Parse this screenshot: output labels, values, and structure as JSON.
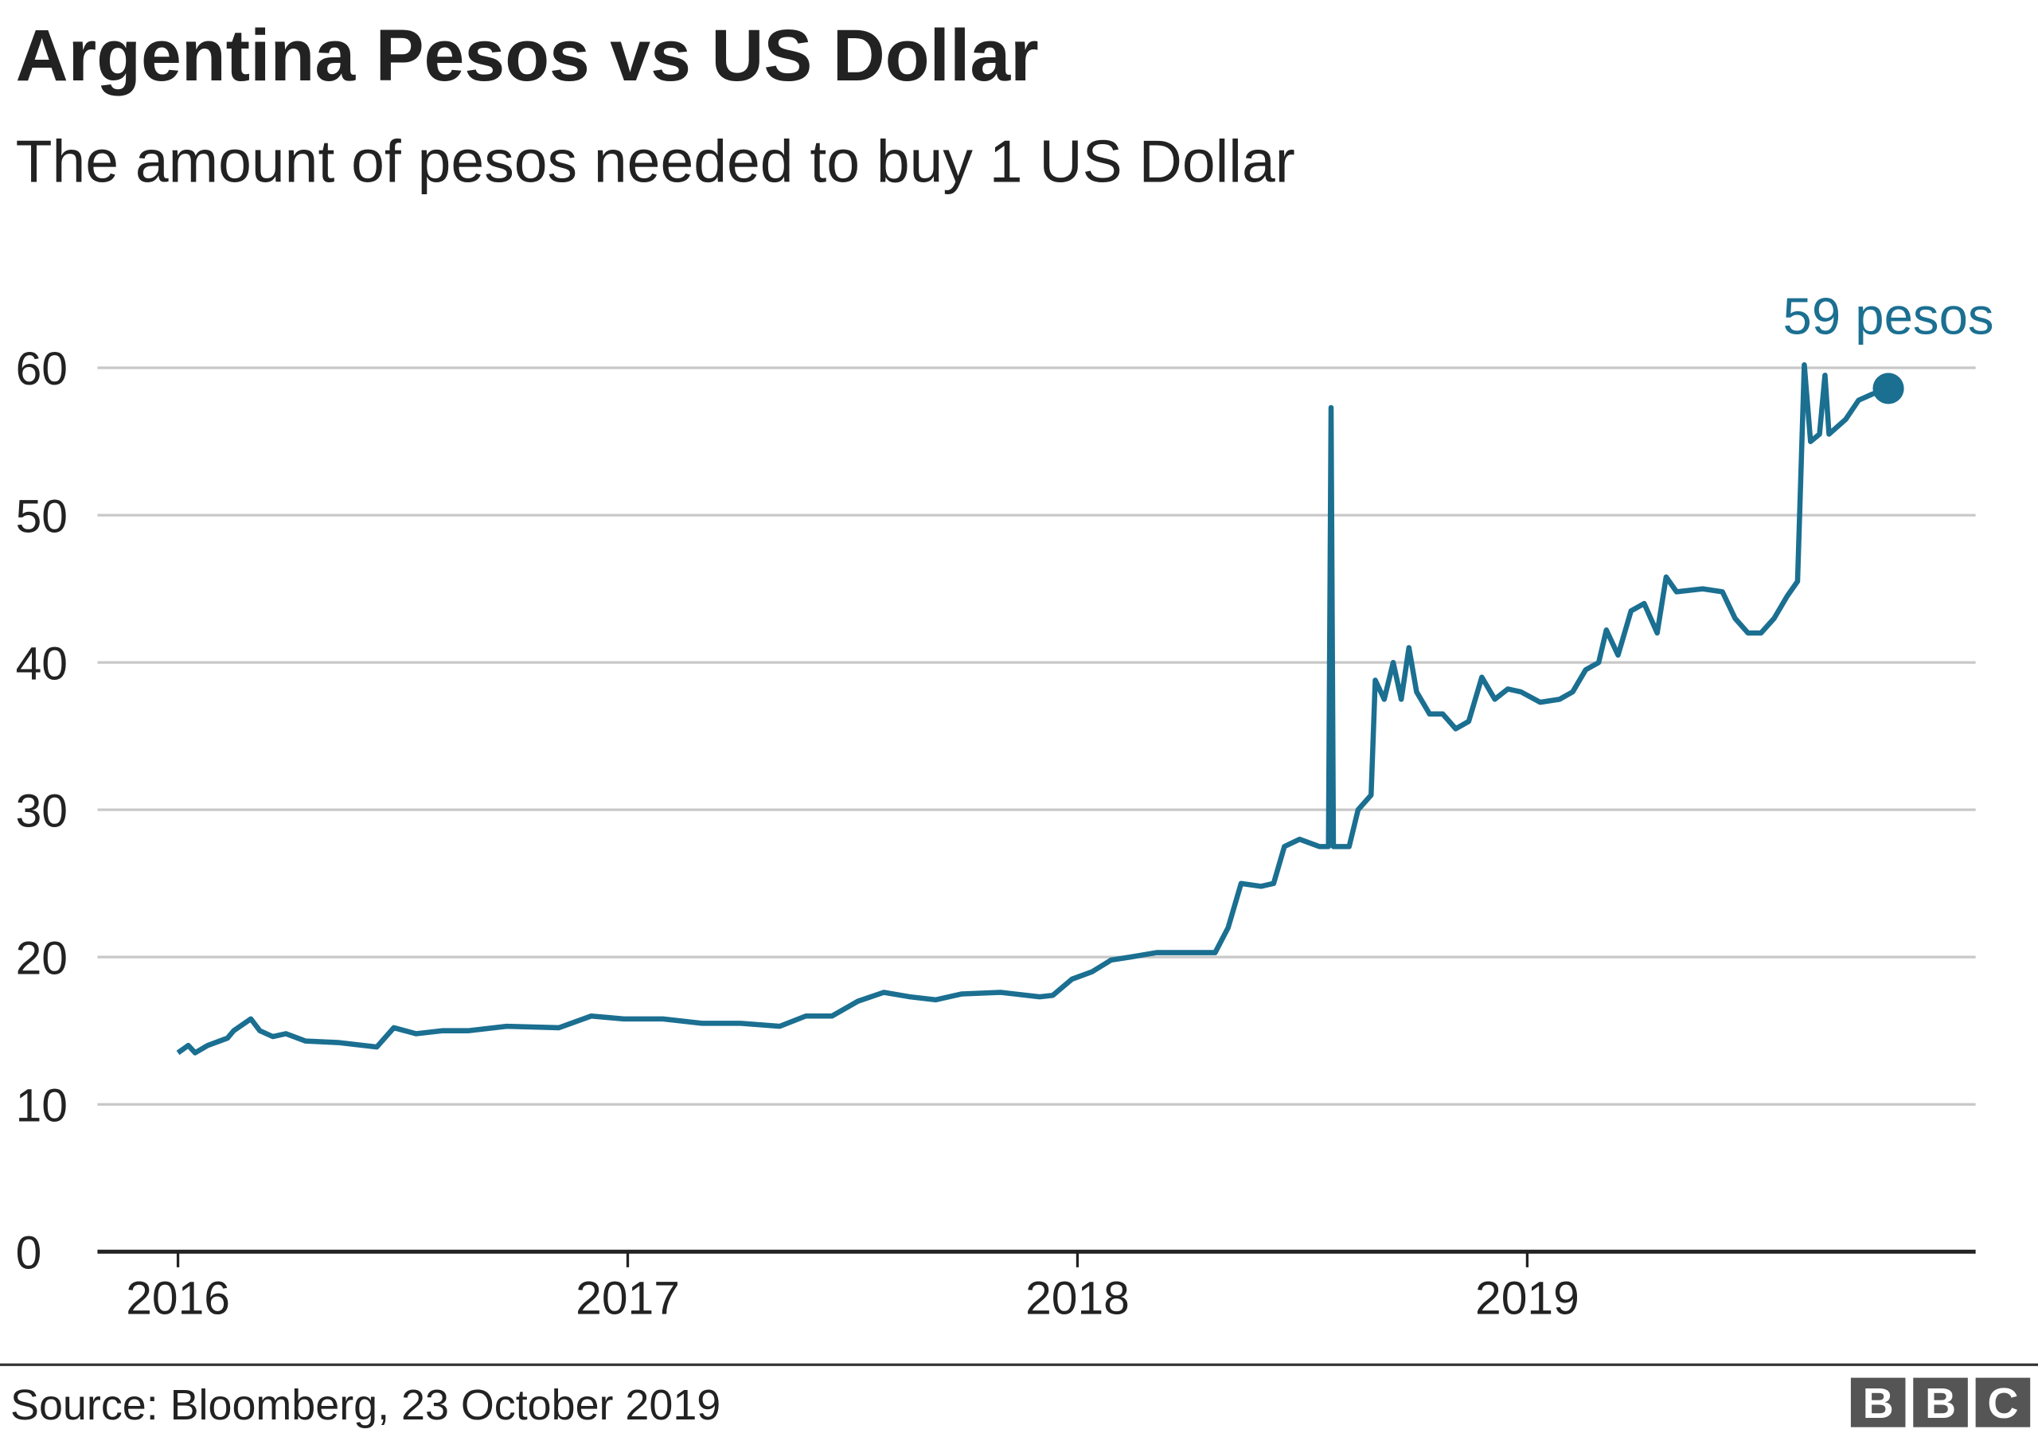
{
  "chart_data": {
    "type": "line",
    "title": "Argentina Pesos vs US Dollar",
    "subtitle": "The amount of pesos needed to buy 1 US Dollar",
    "source": "Source: Bloomberg, 23 October 2019",
    "logo": [
      "B",
      "B",
      "C"
    ],
    "annotation": "59 pesos",
    "xlim": [
      2015.821,
      2019.997
    ],
    "xticks": [
      2016,
      2017,
      2018,
      2019
    ],
    "ylim": [
      0,
      60
    ],
    "yticks": [
      0,
      10,
      20,
      30,
      40,
      50,
      60
    ],
    "grid": true,
    "series": [
      {
        "color": "#1b6f91",
        "x": [
          2016.0,
          2016.023,
          2016.038,
          2016.066,
          2016.11,
          2016.124,
          2016.162,
          2016.182,
          2016.211,
          2016.24,
          2016.283,
          2016.356,
          2016.442,
          2016.48,
          2016.529,
          2016.587,
          2016.645,
          2016.731,
          2016.847,
          2016.919,
          2016.991,
          2017.078,
          2017.165,
          2017.251,
          2017.338,
          2017.396,
          2017.454,
          2017.512,
          2017.569,
          2017.627,
          2017.685,
          2017.743,
          2017.829,
          2017.916,
          2017.945,
          2017.988,
          2018.032,
          2018.075,
          2018.118,
          2018.176,
          2018.306,
          2018.335,
          2018.364,
          2018.408,
          2018.436,
          2018.46,
          2018.494,
          2018.538,
          2018.558,
          2018.564,
          2018.569,
          2018.604,
          2018.624,
          2018.653,
          2018.662,
          2018.682,
          2018.702,
          2018.72,
          2018.737,
          2018.754,
          2018.783,
          2018.812,
          2018.841,
          2018.87,
          2018.899,
          2018.928,
          2018.957,
          2018.986,
          2019.029,
          2019.072,
          2019.101,
          2019.13,
          2019.159,
          2019.176,
          2019.202,
          2019.231,
          2019.26,
          2019.289,
          2019.309,
          2019.332,
          2019.39,
          2019.434,
          2019.462,
          2019.491,
          2019.52,
          2019.549,
          2019.578,
          2019.601,
          2019.616,
          2019.63,
          2019.65,
          2019.662,
          2019.671,
          2019.708,
          2019.737,
          2019.766,
          2019.803
        ],
        "values": [
          13.5,
          14,
          13.5,
          14,
          14.5,
          15,
          15.8,
          15,
          14.6,
          14.8,
          14.3,
          14.2,
          13.9,
          15.2,
          14.8,
          15,
          15,
          15.3,
          15.2,
          16,
          15.8,
          15.8,
          15.5,
          15.5,
          15.3,
          16,
          16,
          17,
          17.6,
          17.3,
          17.1,
          17.5,
          17.6,
          17.3,
          17.4,
          18.5,
          19,
          19.8,
          20,
          20.3,
          20.3,
          22,
          25,
          24.8,
          25,
          27.5,
          28,
          27.5,
          27.5,
          57.3,
          27.5,
          27.5,
          30,
          31,
          38.8,
          37.5,
          40,
          37.5,
          41,
          38,
          36.5,
          36.5,
          35.5,
          36,
          39,
          37.5,
          38.2,
          38,
          37.3,
          37.5,
          38,
          39.5,
          40,
          42.2,
          40.5,
          43.5,
          44,
          42,
          45.8,
          44.8,
          45,
          44.8,
          43,
          42,
          42,
          43,
          44.5,
          45.5,
          60.2,
          55,
          55.5,
          59.5,
          55.5,
          56.5,
          57.8,
          58.2,
          58.6
        ]
      }
    ]
  }
}
